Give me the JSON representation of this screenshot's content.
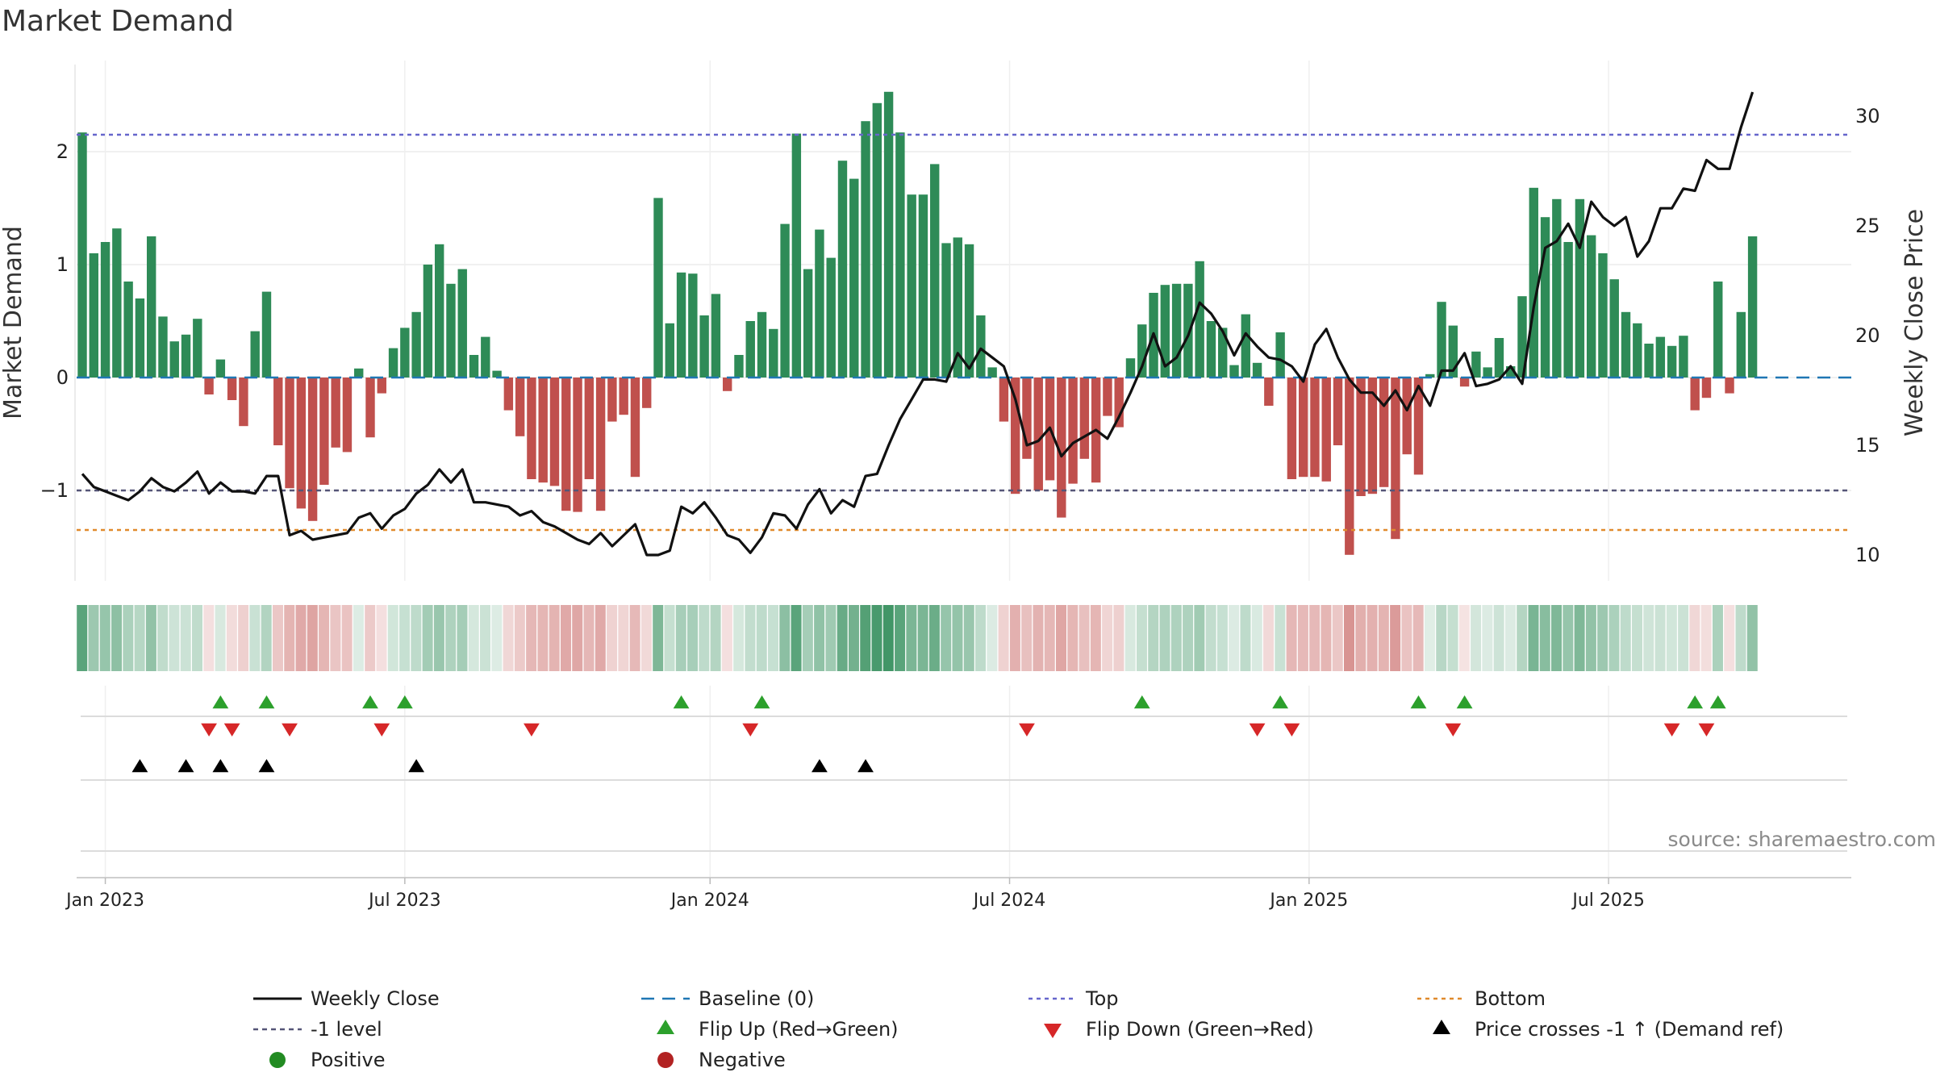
{
  "title": "Market Demand",
  "source": "source: sharemaestro.com",
  "chart_data": {
    "type": "bar+line",
    "title": "Market Demand",
    "ylabel_left": "Market Demand",
    "ylabel_right": "Weekly Close Price",
    "left_ticks": [
      {
        "v": 2,
        "label": "2"
      },
      {
        "v": 1,
        "label": "1"
      },
      {
        "v": 0,
        "label": "0"
      },
      {
        "v": -1,
        "label": "−1"
      }
    ],
    "right_ticks": [
      {
        "v": 30,
        "label": "30"
      },
      {
        "v": 25,
        "label": "25"
      },
      {
        "v": 20,
        "label": "20"
      },
      {
        "v": 15,
        "label": "15"
      },
      {
        "v": 10,
        "label": "10"
      }
    ],
    "x_ticks": [
      {
        "label": "Jan 2023",
        "w": 2
      },
      {
        "label": "Jul 2023",
        "w": 28
      },
      {
        "label": "Jan 2024",
        "w": 54.5
      },
      {
        "label": "Jul 2024",
        "w": 80.5
      },
      {
        "label": "Jan 2025",
        "w": 106.5
      },
      {
        "label": "Jul 2025",
        "w": 132.5
      }
    ],
    "levels": {
      "top": 2.15,
      "minus1": -1,
      "bottom": -1.35,
      "baseline": 0
    },
    "demand": [
      2.17,
      1.1,
      1.2,
      1.32,
      0.85,
      0.7,
      1.25,
      0.54,
      0.32,
      0.38,
      0.52,
      -0.15,
      0.16,
      -0.2,
      -0.43,
      0.41,
      0.76,
      -0.6,
      -0.98,
      -1.16,
      -1.27,
      -0.95,
      -0.62,
      -0.66,
      0.08,
      -0.53,
      -0.14,
      0.26,
      0.44,
      0.58,
      1.0,
      1.18,
      0.83,
      0.96,
      0.2,
      0.36,
      0.06,
      -0.29,
      -0.52,
      -0.9,
      -0.93,
      -0.96,
      -1.18,
      -1.19,
      -0.9,
      -1.18,
      -0.39,
      -0.33,
      -0.88,
      -0.27,
      1.59,
      0.48,
      0.93,
      0.92,
      0.55,
      0.74,
      -0.12,
      0.2,
      0.5,
      0.58,
      0.43,
      1.36,
      2.16,
      0.96,
      1.31,
      1.06,
      1.92,
      1.76,
      2.27,
      2.43,
      2.53,
      2.17,
      1.62,
      1.62,
      1.89,
      1.19,
      1.24,
      1.18,
      0.55,
      0.09,
      -0.39,
      -1.03,
      -0.72,
      -1.0,
      -0.91,
      -1.24,
      -0.94,
      -0.72,
      -0.93,
      -0.34,
      -0.44,
      0.17,
      0.47,
      0.75,
      0.82,
      0.83,
      0.83,
      1.03,
      0.5,
      0.44,
      0.11,
      0.56,
      0.13,
      -0.25,
      0.4,
      -0.9,
      -0.88,
      -0.88,
      -0.92,
      -0.6,
      -1.57,
      -1.05,
      -1.03,
      -0.97,
      -1.43,
      -0.68,
      -0.86,
      0.03,
      0.67,
      0.46,
      -0.08,
      0.23,
      0.09,
      0.35,
      0.1,
      0.72,
      1.68,
      1.42,
      1.58,
      1.2,
      1.58,
      1.26,
      1.1,
      0.87,
      0.58,
      0.48,
      0.3,
      0.36,
      0.28,
      0.37,
      -0.29,
      -0.18,
      0.85,
      -0.14,
      0.58,
      1.25
    ],
    "weekly_close": [
      13.7,
      13.1,
      12.9,
      12.7,
      12.5,
      12.9,
      13.5,
      13.1,
      12.9,
      13.3,
      13.8,
      12.8,
      13.3,
      12.9,
      12.9,
      12.8,
      13.6,
      13.6,
      10.9,
      11.1,
      10.7,
      10.8,
      10.9,
      11.0,
      11.7,
      11.9,
      11.2,
      11.8,
      12.1,
      12.8,
      13.2,
      13.9,
      13.3,
      13.9,
      12.4,
      12.4,
      12.3,
      12.2,
      11.8,
      12.0,
      11.5,
      11.3,
      11.0,
      10.7,
      10.5,
      11.0,
      10.4,
      10.9,
      11.4,
      10.0,
      10.0,
      10.2,
      12.2,
      11.9,
      12.4,
      11.7,
      10.9,
      10.7,
      10.1,
      10.8,
      11.9,
      11.8,
      11.2,
      12.3,
      13.0,
      11.9,
      12.5,
      12.2,
      13.6,
      13.7,
      15.0,
      16.2,
      17.1,
      18.0,
      18.0,
      17.9,
      19.2,
      18.5,
      19.4,
      19.0,
      18.6,
      17.1,
      15.0,
      15.2,
      15.8,
      14.5,
      15.1,
      15.4,
      15.7,
      15.3,
      16.3,
      17.4,
      18.6,
      20.1,
      18.6,
      19.0,
      20.0,
      21.5,
      21.0,
      20.2,
      19.1,
      20.1,
      19.5,
      19.0,
      18.9,
      18.6,
      17.9,
      19.6,
      20.3,
      19.0,
      18.0,
      17.4,
      17.4,
      16.8,
      17.5,
      16.6,
      17.7,
      16.8,
      18.4,
      18.4,
      19.2,
      17.7,
      17.8,
      18.0,
      18.6,
      17.8,
      21.3,
      24.0,
      24.3,
      25.1,
      24.0,
      26.1,
      25.4,
      25.0,
      25.4,
      23.6,
      24.3,
      25.8,
      25.8,
      26.7,
      26.6,
      28.0,
      27.6,
      27.6,
      29.5,
      31.1
    ],
    "intensity_strip": {
      "positive_color": "#2e8b57",
      "negative_color": "#c0504d"
    },
    "markers": {
      "flip_up": [
        12,
        16,
        25,
        28,
        52,
        59,
        92,
        104,
        116,
        120,
        140,
        142
      ],
      "flip_down": [
        11,
        13,
        18,
        26,
        39,
        58,
        82,
        102,
        105,
        119,
        138,
        141
      ],
      "price_cross": [
        5,
        9,
        12,
        16,
        29,
        64,
        68
      ]
    },
    "legend": [
      {
        "label": "Weekly Close",
        "kind": "line"
      },
      {
        "label": "Baseline (0)",
        "kind": "baseline"
      },
      {
        "label": "Top",
        "kind": "top"
      },
      {
        "label": "Bottom",
        "kind": "bottom"
      },
      {
        "label": "-1 level",
        "kind": "minus1"
      },
      {
        "label": "Flip Up (Red→Green)",
        "kind": "flipup"
      },
      {
        "label": "Flip Down (Green→Red)",
        "kind": "flipdown"
      },
      {
        "label": "Price crosses -1 ↑ (Demand ref)",
        "kind": "cross"
      },
      {
        "label": "Positive",
        "kind": "pos"
      },
      {
        "label": "Negative",
        "kind": "neg"
      }
    ]
  },
  "colors": {
    "green": "#2e8b57",
    "red": "#c0504d",
    "line": "#111111",
    "baseline": "#1f77b4",
    "top": "#6666cc",
    "minus1": "#555577",
    "bottom": "#e08a2c",
    "flipup": "#2ca02c",
    "flipdown": "#d62728",
    "cross": "#000000",
    "legend_pos": "#228b22",
    "legend_neg": "#b22222"
  }
}
